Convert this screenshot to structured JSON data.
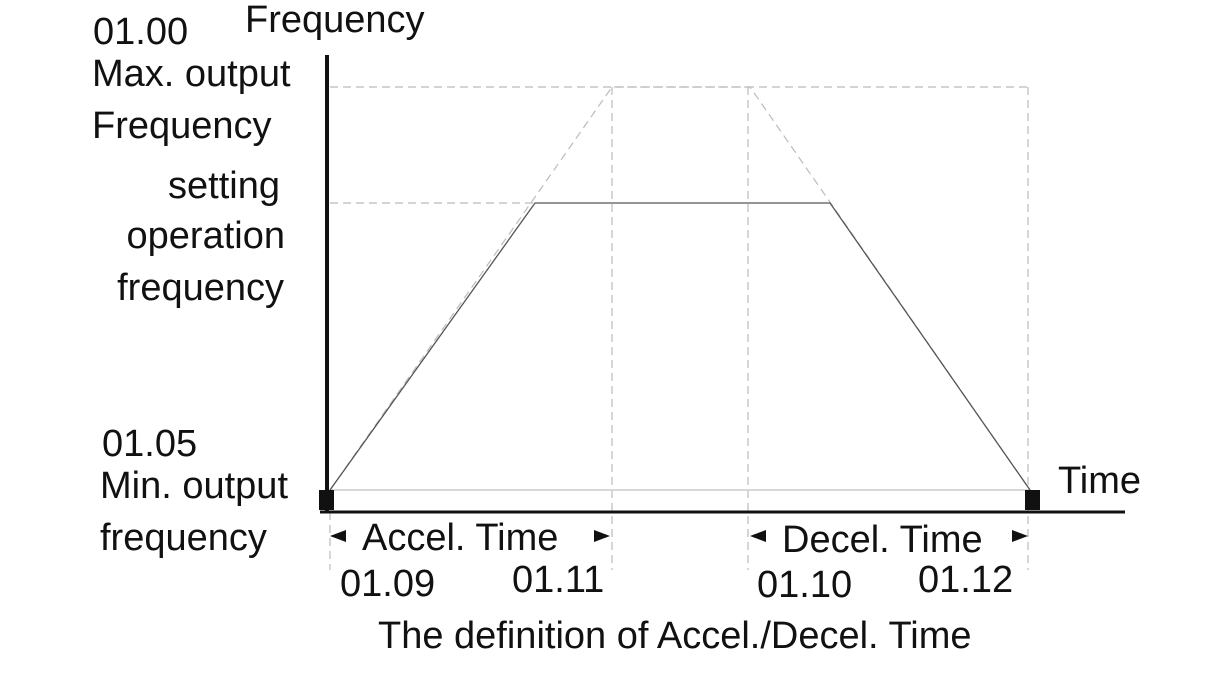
{
  "y_axis": {
    "label": "Frequency",
    "max": {
      "code": "01.00",
      "label": [
        "Max. output",
        "Frequency"
      ]
    },
    "setting": [
      "setting",
      "operation",
      "frequency"
    ],
    "min": {
      "code": "01.05",
      "label": [
        "Min. output",
        "frequency"
      ]
    }
  },
  "x_axis": {
    "label": "Time"
  },
  "accel": {
    "label": "Accel. Time",
    "codes": [
      "01.09",
      "01.11"
    ]
  },
  "decel": {
    "label": "Decel. Time",
    "codes": [
      "01.10",
      "01.12"
    ]
  },
  "caption": "The definition of Accel./Decel. Time"
}
